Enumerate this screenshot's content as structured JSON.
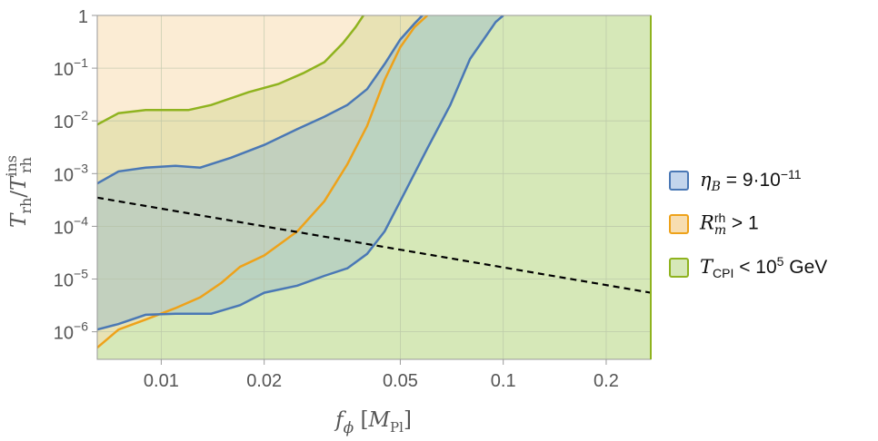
{
  "chart_data": {
    "type": "area",
    "x_scale": "log",
    "y_scale": "log",
    "xlim": [
      0.0065,
      0.27
    ],
    "ylim": [
      3e-07,
      1
    ],
    "grid": true,
    "legend_position": "right",
    "xlabel": "f_ϕ [M_Pl]",
    "ylabel": "T_rh / T_rh^ins",
    "x_ticks": [
      {
        "value": 0.01,
        "label": "0.01"
      },
      {
        "value": 0.02,
        "label": "0.02"
      },
      {
        "value": 0.05,
        "label": "0.05"
      },
      {
        "value": 0.1,
        "label": "0.1"
      },
      {
        "value": 0.2,
        "label": "0.2"
      }
    ],
    "y_ticks": [
      {
        "value": 1,
        "base": "1",
        "exp": ""
      },
      {
        "value": 0.1,
        "base": "10",
        "exp": "−1"
      },
      {
        "value": 0.01,
        "base": "10",
        "exp": "−2"
      },
      {
        "value": 0.001,
        "base": "10",
        "exp": "−3"
      },
      {
        "value": 0.0001,
        "base": "10",
        "exp": "−4"
      },
      {
        "value": 1e-05,
        "base": "10",
        "exp": "−5"
      },
      {
        "value": 1e-06,
        "base": "10",
        "exp": "−6"
      }
    ],
    "series": [
      {
        "key": "tcpi",
        "name": "T_CPI < 10^5 GeV",
        "fill": "#d6e8b8",
        "stroke": "#8fb31f",
        "region": "below-curve",
        "boundary": [
          [
            0.0065,
            0.0085
          ],
          [
            0.0075,
            0.014
          ],
          [
            0.009,
            0.016
          ],
          [
            0.012,
            0.016
          ],
          [
            0.014,
            0.02
          ],
          [
            0.018,
            0.035
          ],
          [
            0.022,
            0.05
          ],
          [
            0.026,
            0.08
          ],
          [
            0.03,
            0.13
          ],
          [
            0.034,
            0.3
          ],
          [
            0.037,
            0.6
          ],
          [
            0.039,
            1.0
          ]
        ]
      },
      {
        "key": "eta",
        "name": "η_B = 9·10^−11",
        "fill": "#a9c4c4",
        "stroke": "#4a78b5",
        "region": "band",
        "upper": [
          [
            0.0065,
            0.00065
          ],
          [
            0.0075,
            0.0011
          ],
          [
            0.009,
            0.0013
          ],
          [
            0.011,
            0.0014
          ],
          [
            0.013,
            0.0013
          ],
          [
            0.016,
            0.002
          ],
          [
            0.02,
            0.0035
          ],
          [
            0.025,
            0.007
          ],
          [
            0.03,
            0.012
          ],
          [
            0.035,
            0.02
          ],
          [
            0.04,
            0.04
          ],
          [
            0.045,
            0.12
          ],
          [
            0.05,
            0.35
          ],
          [
            0.055,
            0.7
          ],
          [
            0.058,
            1.0
          ]
        ],
        "lower": [
          [
            0.0065,
            1.1e-06
          ],
          [
            0.0075,
            1.4e-06
          ],
          [
            0.009,
            2.1e-06
          ],
          [
            0.011,
            2.2e-06
          ],
          [
            0.014,
            2.2e-06
          ],
          [
            0.017,
            3.2e-06
          ],
          [
            0.02,
            5.5e-06
          ],
          [
            0.025,
            7.5e-06
          ],
          [
            0.03,
            1.15e-05
          ],
          [
            0.035,
            1.6e-05
          ],
          [
            0.04,
            3e-05
          ],
          [
            0.045,
            8e-05
          ],
          [
            0.05,
            0.0003
          ],
          [
            0.06,
            0.003
          ],
          [
            0.07,
            0.02
          ],
          [
            0.08,
            0.15
          ],
          [
            0.09,
            0.45
          ],
          [
            0.095,
            0.75
          ],
          [
            0.1,
            1.0
          ]
        ]
      },
      {
        "key": "rm",
        "name": "R_m^rh > 1",
        "fill": "#f7ddb0",
        "stroke": "#eea21a",
        "region": "above-curve",
        "boundary": [
          [
            0.0065,
            5e-07
          ],
          [
            0.0075,
            1.1e-06
          ],
          [
            0.009,
            1.7e-06
          ],
          [
            0.011,
            2.8e-06
          ],
          [
            0.013,
            4.5e-06
          ],
          [
            0.015,
            8.5e-06
          ],
          [
            0.017,
            1.7e-05
          ],
          [
            0.02,
            2.8e-05
          ],
          [
            0.025,
            8e-05
          ],
          [
            0.03,
            0.0003
          ],
          [
            0.035,
            0.0015
          ],
          [
            0.04,
            0.008
          ],
          [
            0.045,
            0.06
          ],
          [
            0.05,
            0.25
          ],
          [
            0.055,
            0.6
          ],
          [
            0.06,
            1.0
          ]
        ]
      }
    ],
    "reference_line": {
      "style": "dashed",
      "color": "#000000",
      "points": [
        [
          0.0065,
          0.00035
        ],
        [
          0.27,
          5.5e-06
        ]
      ]
    }
  },
  "legend": [
    {
      "sym": "η",
      "sub": "B",
      "sup": "",
      "rest": " = 9·10",
      "restSup": "−11",
      "tail": "",
      "fill": "#c3d5ec",
      "stroke": "#4a78b5"
    },
    {
      "sym": "R",
      "sub": "m",
      "sup": "rh",
      "rest": " > 1",
      "restSup": "",
      "tail": "",
      "fill": "#f7ddb0",
      "stroke": "#eea21a"
    },
    {
      "sym": "T",
      "sub": "CPI",
      "sup": "",
      "rest": " < 10",
      "restSup": "5",
      "tail": " GeV",
      "fill": "#d6e8b8",
      "stroke": "#8fb31f"
    }
  ],
  "axis_text": {
    "x_symbol": "f",
    "x_sub": "ϕ",
    "x_unit_open": " [",
    "x_unit_symbol": "M",
    "x_unit_sub": "Pl",
    "x_unit_close": "]",
    "y_num": "T",
    "y_num_sub": "rh",
    "y_slash": "/",
    "y_den": "T",
    "y_den_sub": "rh",
    "y_den_sup": "ins"
  }
}
